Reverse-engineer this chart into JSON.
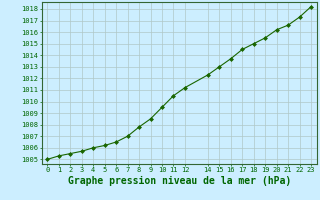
{
  "x": [
    0,
    1,
    2,
    3,
    4,
    5,
    6,
    7,
    8,
    9,
    10,
    11,
    12,
    14,
    15,
    16,
    17,
    18,
    19,
    20,
    21,
    22,
    23
  ],
  "y": [
    1005.0,
    1005.3,
    1005.5,
    1005.7,
    1006.0,
    1006.2,
    1006.5,
    1007.0,
    1007.8,
    1008.5,
    1009.5,
    1010.5,
    1011.2,
    1012.3,
    1013.0,
    1013.7,
    1014.5,
    1015.0,
    1015.5,
    1016.2,
    1016.6,
    1017.3,
    1018.2
  ],
  "line_color": "#1a6600",
  "marker": "D",
  "marker_size": 2,
  "bg_color": "#cceeff",
  "grid_color": "#b0c8c8",
  "xlabel": "Graphe pression niveau de la mer (hPa)",
  "xlabel_fontsize": 7,
  "xlim": [
    -0.5,
    23.5
  ],
  "ylim": [
    1004.6,
    1018.6
  ],
  "xticks": [
    0,
    1,
    2,
    3,
    4,
    5,
    6,
    7,
    8,
    9,
    10,
    11,
    12,
    14,
    15,
    16,
    17,
    18,
    19,
    20,
    21,
    22,
    23
  ],
  "yticks": [
    1005,
    1006,
    1007,
    1008,
    1009,
    1010,
    1011,
    1012,
    1013,
    1014,
    1015,
    1016,
    1017,
    1018
  ],
  "tick_fontsize": 5,
  "line_width": 0.8
}
